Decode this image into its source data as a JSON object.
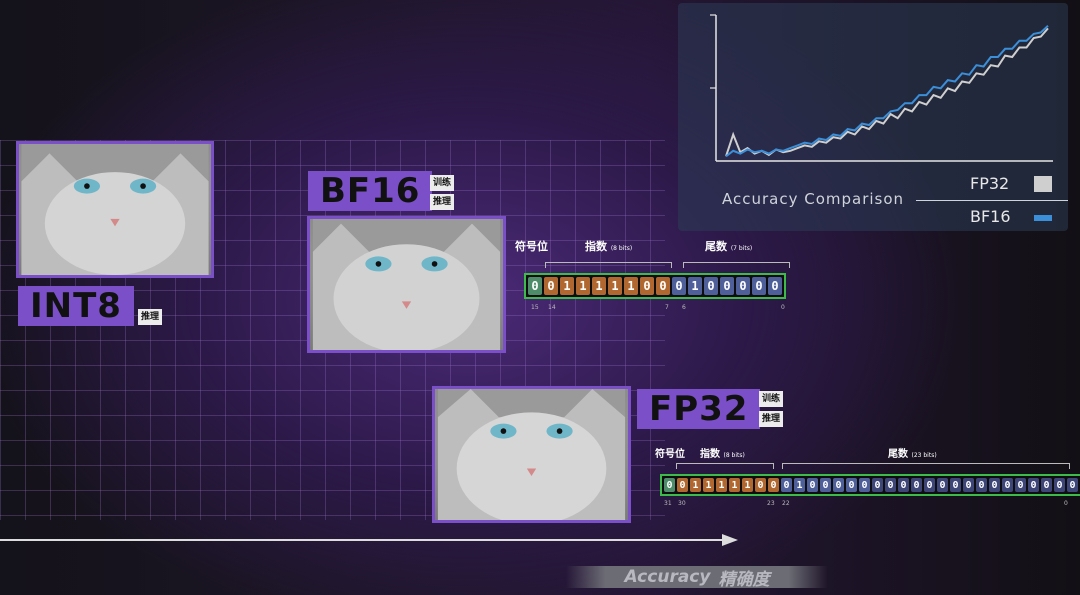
{
  "formats": {
    "int8": {
      "label": "INT8",
      "tags": [
        "推理"
      ]
    },
    "bf16": {
      "label": "BF16",
      "tags": [
        "训练",
        "推理"
      ],
      "fields": {
        "sign": "符号位",
        "exponent": "指数",
        "exponent_bits": "(8 bits)",
        "mantissa": "尾数",
        "mantissa_bits": "(7 bits)"
      },
      "bits": [
        "0",
        "0",
        "1",
        "1",
        "1",
        "1",
        "1",
        "0",
        "0",
        "0",
        "1",
        "0",
        "0",
        "0",
        "0",
        "0"
      ],
      "bit_types": [
        "sign",
        "exp",
        "exp",
        "exp",
        "exp",
        "exp",
        "exp",
        "exp",
        "exp",
        "man",
        "man",
        "man",
        "man",
        "man",
        "man",
        "man"
      ],
      "ticks": [
        "15",
        "14",
        "7",
        "6",
        "0"
      ]
    },
    "fp32": {
      "label": "FP32",
      "tags": [
        "训练",
        "推理"
      ],
      "fields": {
        "sign": "符号位",
        "exponent": "指数",
        "exponent_bits": "(8 bits)",
        "mantissa": "尾数",
        "mantissa_bits": "(23 bits)"
      },
      "bits": [
        "0",
        "0",
        "1",
        "1",
        "1",
        "1",
        "1",
        "0",
        "0",
        "0",
        "1",
        "0",
        "0",
        "0",
        "0",
        "0",
        "0",
        "0",
        "0",
        "0",
        "0",
        "0",
        "0",
        "0",
        "0",
        "0",
        "0",
        "0",
        "0",
        "0",
        "0",
        "0"
      ],
      "bit_types": [
        "sign",
        "exp",
        "exp",
        "exp",
        "exp",
        "exp",
        "exp",
        "exp",
        "exp",
        "man",
        "man",
        "man",
        "man",
        "man",
        "man",
        "man",
        "pad",
        "pad",
        "pad",
        "pad",
        "pad",
        "pad",
        "pad",
        "pad",
        "pad",
        "pad",
        "pad",
        "pad",
        "pad",
        "pad",
        "pad",
        "pad"
      ],
      "ticks": [
        "31",
        "30",
        "23",
        "22",
        "0"
      ]
    }
  },
  "axis": {
    "label_en": "Accuracy",
    "label_cn": "精确度"
  },
  "chart_data": {
    "type": "line",
    "title": "Accuracy Comparison",
    "series": [
      {
        "name": "FP32",
        "color": "#cfcfcf",
        "values": [
          0.02,
          0.18,
          0.05,
          0.08,
          0.04,
          0.06,
          0.03,
          0.07,
          0.05,
          0.06,
          0.08,
          0.1,
          0.09,
          0.13,
          0.12,
          0.16,
          0.15,
          0.2,
          0.18,
          0.24,
          0.22,
          0.28,
          0.26,
          0.33,
          0.3,
          0.37,
          0.35,
          0.42,
          0.4,
          0.47,
          0.45,
          0.52,
          0.5,
          0.57,
          0.56,
          0.63,
          0.62,
          0.69,
          0.68,
          0.76,
          0.75,
          0.82,
          0.82,
          0.89,
          0.9,
          0.96
        ]
      },
      {
        "name": "BF16",
        "color": "#3b8fd9",
        "values": [
          0.02,
          0.06,
          0.04,
          0.07,
          0.05,
          0.06,
          0.04,
          0.07,
          0.06,
          0.08,
          0.1,
          0.12,
          0.11,
          0.15,
          0.14,
          0.18,
          0.17,
          0.22,
          0.21,
          0.26,
          0.25,
          0.3,
          0.3,
          0.35,
          0.36,
          0.41,
          0.41,
          0.47,
          0.47,
          0.53,
          0.52,
          0.58,
          0.57,
          0.63,
          0.62,
          0.69,
          0.68,
          0.75,
          0.75,
          0.81,
          0.81,
          0.87,
          0.87,
          0.92,
          0.93,
          0.98
        ]
      }
    ],
    "grid": false,
    "legend": "bottom-right"
  }
}
